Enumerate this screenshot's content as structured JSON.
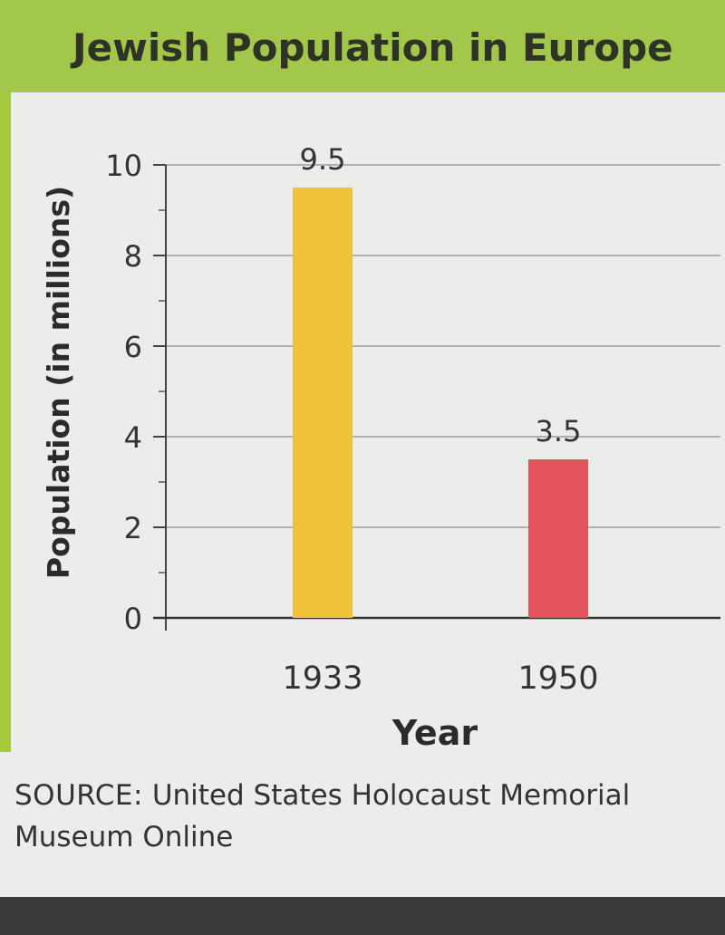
{
  "chart_data": {
    "type": "bar",
    "title": "Jewish Population in Europe",
    "xlabel": "Year",
    "ylabel": "Population (in millions)",
    "categories": [
      "1933",
      "1950"
    ],
    "values": [
      9.5,
      3.5
    ],
    "data_labels": [
      "9.5",
      "3.5"
    ],
    "bar_colors": [
      "#f0c23a",
      "#e3535b"
    ],
    "ylim": [
      0,
      10
    ],
    "yticks": [
      0,
      2,
      4,
      6,
      8,
      10
    ],
    "grid": true
  },
  "source": {
    "label": "SOURCE:",
    "text": "United States Holocaust Memorial Museum Online"
  },
  "colors": {
    "title_band": "#a3c74a",
    "background": "#ececea"
  }
}
